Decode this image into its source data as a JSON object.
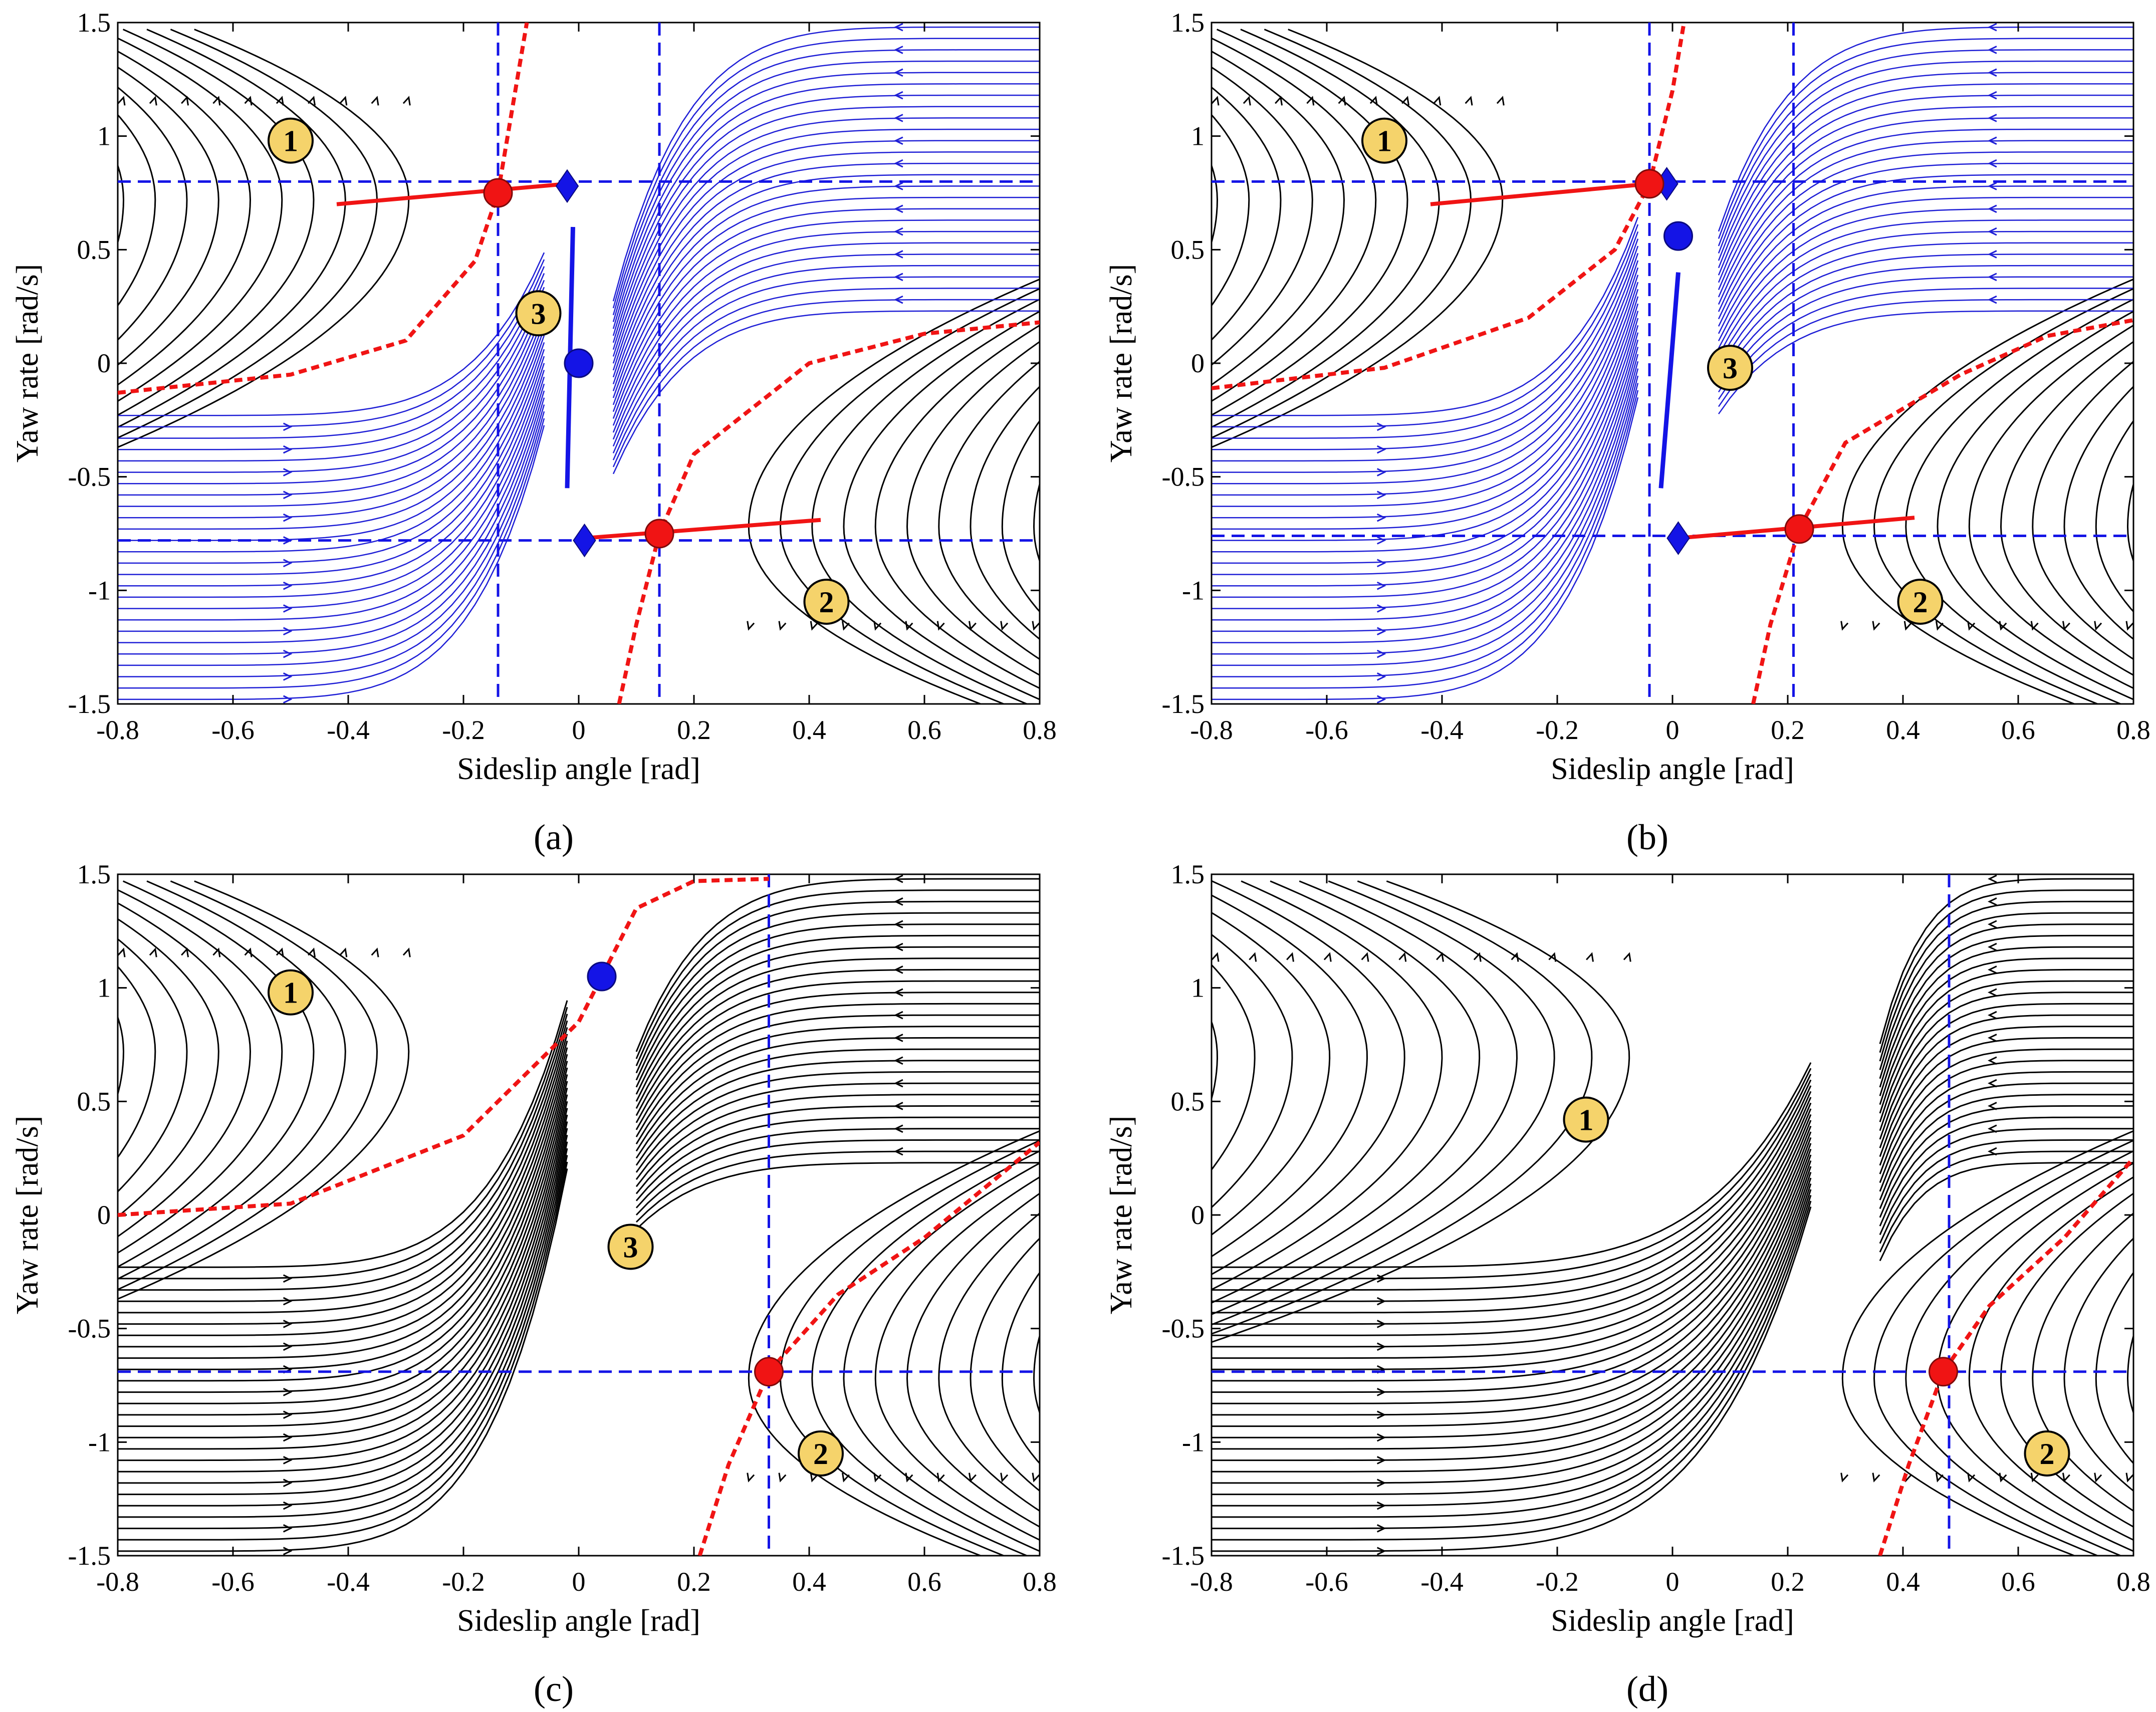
{
  "figure": {
    "colors": {
      "stable_streamline": "#1f1fd6",
      "unstable_streamline": "#000000",
      "equilibrium_stable": "#1414e6",
      "equilibrium_saddle": "#f01414",
      "separatrix": "#f01414",
      "boundary": "#1414e6",
      "region_fill": "#f5d36b"
    }
  },
  "chart_data": [
    {
      "type": "line",
      "label": "(a)",
      "xlabel": "Sideslip angle [rad]",
      "ylabel": "Yaw rate [rad/s]",
      "xlim": [
        -0.8,
        0.8
      ],
      "ylim": [
        -1.5,
        1.5
      ],
      "xticks": [
        "-0.8",
        "-0.6",
        "-0.4",
        "-0.2",
        "0",
        "0.2",
        "0.4",
        "0.6",
        "0.8"
      ],
      "yticks": [
        "-1.5",
        "-1",
        "-0.5",
        "0",
        "0.5",
        "1",
        "1.5"
      ],
      "stable_region": true,
      "stable_equilibrium": [
        0.0,
        0.0
      ],
      "saddle_points": [
        [
          -0.14,
          0.75
        ],
        [
          0.14,
          -0.75
        ]
      ],
      "diamonds": [
        [
          -0.02,
          0.78
        ],
        [
          0.01,
          -0.78
        ]
      ],
      "boundary_lines": {
        "x": [
          -0.14,
          0.14
        ],
        "y": [
          0.8,
          -0.78
        ]
      },
      "stable_manifold": [
        [
          -0.01,
          0.6
        ],
        [
          -0.02,
          -0.55
        ]
      ],
      "red_lines": [
        [
          [
            -0.42,
            0.7
          ],
          [
            -0.02,
            0.79
          ]
        ],
        [
          [
            0.01,
            -0.77
          ],
          [
            0.42,
            -0.69
          ]
        ]
      ],
      "separatrices": [
        [
          [
            -0.8,
            -0.13
          ],
          [
            -0.5,
            -0.05
          ],
          [
            -0.3,
            0.1
          ],
          [
            -0.18,
            0.45
          ],
          [
            -0.14,
            0.75
          ],
          [
            -0.11,
            1.2
          ],
          [
            -0.09,
            1.5
          ]
        ],
        [
          [
            0.07,
            -1.5
          ],
          [
            0.1,
            -1.15
          ],
          [
            0.14,
            -0.75
          ],
          [
            0.2,
            -0.4
          ],
          [
            0.4,
            0.0
          ],
          [
            0.6,
            0.13
          ],
          [
            0.8,
            0.18
          ]
        ]
      ],
      "regions": [
        {
          "label": "1",
          "x": -0.5,
          "y": 0.98
        },
        {
          "label": "2",
          "x": 0.43,
          "y": -1.05
        },
        {
          "label": "3",
          "x": -0.07,
          "y": 0.22
        }
      ]
    },
    {
      "type": "line",
      "label": "(b)",
      "xlabel": "Sideslip angle [rad]",
      "ylabel": "Yaw rate [rad/s]",
      "xlim": [
        -0.8,
        0.8
      ],
      "ylim": [
        -1.5,
        1.5
      ],
      "xticks": [
        "-0.8",
        "-0.6",
        "-0.4",
        "-0.2",
        "0",
        "0.2",
        "0.4",
        "0.6",
        "0.8"
      ],
      "yticks": [
        "-1.5",
        "-1",
        "-0.5",
        "0",
        "0.5",
        "1",
        "1.5"
      ],
      "stable_region": true,
      "stable_equilibrium": [
        0.01,
        0.56
      ],
      "saddle_points": [
        [
          -0.04,
          0.79
        ],
        [
          0.22,
          -0.73
        ]
      ],
      "diamonds": [
        [
          -0.01,
          0.79
        ],
        [
          0.01,
          -0.77
        ]
      ],
      "boundary_lines": {
        "x": [
          -0.04,
          0.21
        ],
        "y": [
          0.8,
          -0.76
        ]
      },
      "stable_manifold": [
        [
          0.01,
          0.4
        ],
        [
          -0.02,
          -0.55
        ]
      ],
      "red_lines": [
        [
          [
            -0.42,
            0.7
          ],
          [
            -0.04,
            0.79
          ]
        ],
        [
          [
            0.01,
            -0.77
          ],
          [
            0.42,
            -0.68
          ]
        ]
      ],
      "separatrices": [
        [
          [
            -0.8,
            -0.11
          ],
          [
            -0.5,
            -0.02
          ],
          [
            -0.25,
            0.2
          ],
          [
            -0.1,
            0.5
          ],
          [
            -0.04,
            0.79
          ],
          [
            0.0,
            1.2
          ],
          [
            0.02,
            1.5
          ]
        ],
        [
          [
            0.14,
            -1.5
          ],
          [
            0.17,
            -1.15
          ],
          [
            0.22,
            -0.73
          ],
          [
            0.3,
            -0.35
          ],
          [
            0.5,
            -0.05
          ],
          [
            0.65,
            0.12
          ],
          [
            0.8,
            0.19
          ]
        ]
      ],
      "regions": [
        {
          "label": "1",
          "x": -0.5,
          "y": 0.98
        },
        {
          "label": "2",
          "x": 0.43,
          "y": -1.05
        },
        {
          "label": "3",
          "x": 0.1,
          "y": -0.02
        }
      ]
    },
    {
      "type": "line",
      "label": "(c)",
      "xlabel": "Sideslip angle [rad]",
      "ylabel": "Yaw rate [rad/s]",
      "xlim": [
        -0.8,
        0.8
      ],
      "ylim": [
        -1.5,
        1.5
      ],
      "xticks": [
        "-0.8",
        "-0.6",
        "-0.4",
        "-0.2",
        "0",
        "0.2",
        "0.4",
        "0.6",
        "0.8"
      ],
      "yticks": [
        "-1.5",
        "-1",
        "-0.5",
        "0",
        "0.5",
        "1",
        "1.5"
      ],
      "stable_region": false,
      "stable_equilibrium": [
        0.04,
        1.05
      ],
      "saddle_points": [
        [
          0.33,
          -0.69
        ]
      ],
      "diamonds": [],
      "boundary_lines": {
        "x": [
          0.33
        ],
        "y": [
          -0.69
        ]
      },
      "stable_manifold": [],
      "red_lines": [],
      "separatrices": [
        [
          [
            -0.8,
            0.0
          ],
          [
            -0.5,
            0.05
          ],
          [
            -0.2,
            0.35
          ],
          [
            0.0,
            0.85
          ],
          [
            0.04,
            1.05
          ],
          [
            0.1,
            1.35
          ],
          [
            0.2,
            1.47
          ],
          [
            0.33,
            1.48
          ]
        ],
        [
          [
            0.21,
            -1.5
          ],
          [
            0.26,
            -1.1
          ],
          [
            0.33,
            -0.69
          ],
          [
            0.45,
            -0.35
          ],
          [
            0.6,
            -0.1
          ],
          [
            0.8,
            0.32
          ]
        ]
      ],
      "regions": [
        {
          "label": "1",
          "x": -0.5,
          "y": 0.98
        },
        {
          "label": "2",
          "x": 0.42,
          "y": -1.05
        },
        {
          "label": "3",
          "x": 0.09,
          "y": -0.14
        }
      ]
    },
    {
      "type": "line",
      "label": "(d)",
      "xlabel": "Sideslip angle [rad]",
      "ylabel": "Yaw rate [rad/s]",
      "xlim": [
        -0.8,
        0.8
      ],
      "ylim": [
        -1.5,
        1.5
      ],
      "xticks": [
        "-0.8",
        "-0.6",
        "-0.4",
        "-0.2",
        "0",
        "0.2",
        "0.4",
        "0.6",
        "0.8"
      ],
      "yticks": [
        "-1.5",
        "-1",
        "-0.5",
        "0",
        "0.5",
        "1",
        "1.5"
      ],
      "stable_region": false,
      "stable_equilibrium": null,
      "saddle_points": [
        [
          0.47,
          -0.69
        ]
      ],
      "diamonds": [],
      "boundary_lines": {
        "x": [
          0.48
        ],
        "y": [
          -0.69
        ]
      },
      "stable_manifold": [],
      "red_lines": [],
      "separatrices": [
        [
          [
            0.36,
            -1.5
          ],
          [
            0.41,
            -1.1
          ],
          [
            0.47,
            -0.69
          ],
          [
            0.55,
            -0.4
          ],
          [
            0.68,
            -0.1
          ],
          [
            0.8,
            0.25
          ]
        ]
      ],
      "regions": [
        {
          "label": "1",
          "x": -0.15,
          "y": 0.42
        },
        {
          "label": "2",
          "x": 0.65,
          "y": -1.05
        }
      ]
    }
  ]
}
